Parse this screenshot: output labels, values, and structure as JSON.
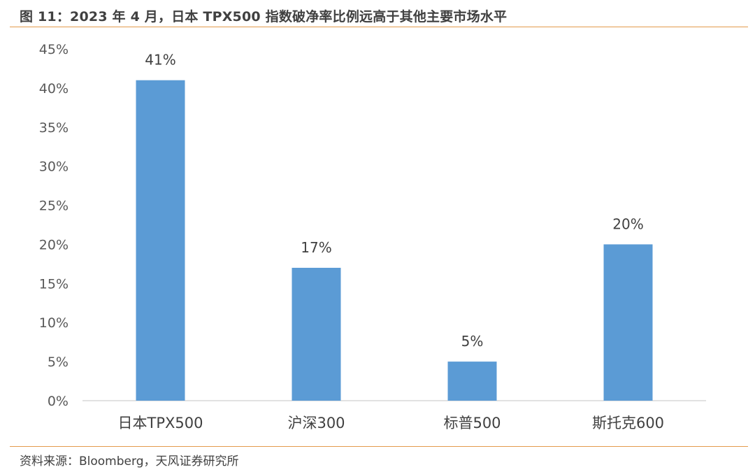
{
  "header": {
    "title": "图 11：2023 年 4 月，日本 TPX500 指数破净率比例远高于其他主要市场水平"
  },
  "footer": {
    "source": "资料来源：Bloomberg，天风证券研究所"
  },
  "colors": {
    "bar": "#5b9bd5",
    "rule": "#e39a4c",
    "axis": "#d9d9d9"
  },
  "chart_data": {
    "type": "bar",
    "categories": [
      "日本TPX500",
      "沪深300",
      "标普500",
      "斯托克600"
    ],
    "values": [
      41,
      17,
      5,
      20
    ],
    "value_labels": [
      "41%",
      "17%",
      "5%",
      "20%"
    ],
    "ylim": [
      0,
      45
    ],
    "yticks": [
      0,
      5,
      10,
      15,
      20,
      25,
      30,
      35,
      40,
      45
    ],
    "ytick_labels": [
      "0%",
      "5%",
      "10%",
      "15%",
      "20%",
      "25%",
      "30%",
      "35%",
      "40%",
      "45%"
    ],
    "grid": false,
    "legend": "none"
  }
}
